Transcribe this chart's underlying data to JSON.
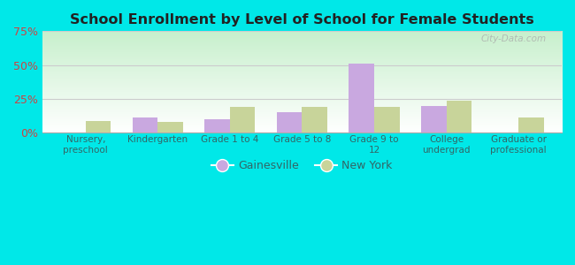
{
  "title": "School Enrollment by Level of School for Female Students",
  "categories": [
    "Nursery,\npreschool",
    "Kindergarten",
    "Grade 1 to 4",
    "Grade 5 to 8",
    "Grade 9 to\n12",
    "College\nundergrad",
    "Graduate or\nprofessional"
  ],
  "gainesville": [
    0,
    11,
    10,
    15,
    51,
    20,
    0
  ],
  "new_york": [
    9,
    8,
    19,
    19,
    19,
    24,
    11
  ],
  "gainesville_color": "#c9a8e0",
  "new_york_color": "#c8d49a",
  "background_color": "#00e8e8",
  "ylim": [
    0,
    75
  ],
  "yticks": [
    0,
    25,
    50,
    75
  ],
  "ytick_labels": [
    "0%",
    "25%",
    "50%",
    "75%"
  ],
  "bar_width": 0.35,
  "legend_gainesville": "Gainesville",
  "legend_new_york": "New York",
  "watermark": "City-Data.com",
  "ytick_color": "#cc4444",
  "xtick_color": "#336666",
  "grid_color": "#cccccc",
  "title_color": "#222222"
}
